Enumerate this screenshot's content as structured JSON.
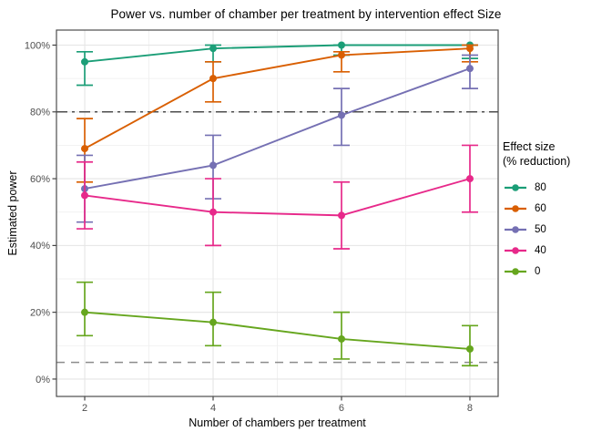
{
  "chart_data": {
    "type": "line",
    "title": "Power vs. number of chamber per treatment by intervention effect Size",
    "xlabel": "Number of chambers per treatment",
    "ylabel": "Estimated power",
    "x": [
      2,
      4,
      6,
      8
    ],
    "xlim": [
      1.56,
      8.44
    ],
    "ylim": [
      -5.2,
      104.5
    ],
    "xticks": {
      "values": [
        2,
        4,
        6,
        8
      ],
      "labels": [
        "2",
        "4",
        "6",
        "8"
      ]
    },
    "yticks": {
      "values": [
        0,
        20,
        40,
        60,
        80,
        100
      ],
      "labels": [
        "0%",
        "20%",
        "40%",
        "60%",
        "80%",
        "100%"
      ]
    },
    "grid": {
      "major": true,
      "minor": true,
      "x_minor": [
        3,
        5,
        7
      ],
      "y_minor": [
        10,
        30,
        50,
        70,
        90
      ]
    },
    "series": [
      {
        "name": "80",
        "color": "#1B9E77",
        "values": [
          95,
          99,
          100,
          100
        ],
        "lower": [
          88,
          95,
          97,
          96
        ],
        "upper": [
          98,
          100,
          100,
          100
        ]
      },
      {
        "name": "60",
        "color": "#D95F02",
        "values": [
          69,
          90,
          97,
          99
        ],
        "lower": [
          59,
          83,
          92,
          95
        ],
        "upper": [
          78,
          95,
          98,
          100
        ]
      },
      {
        "name": "50",
        "color": "#7570B3",
        "values": [
          57,
          64,
          79,
          93
        ],
        "lower": [
          47,
          54,
          70,
          87
        ],
        "upper": [
          67,
          73,
          87,
          97
        ]
      },
      {
        "name": "40",
        "color": "#E7298A",
        "values": [
          55,
          50,
          49,
          60
        ],
        "lower": [
          45,
          40,
          39,
          50
        ],
        "upper": [
          65,
          60,
          59,
          70
        ]
      },
      {
        "name": "0",
        "color": "#66A61E",
        "values": [
          20,
          17,
          12,
          9
        ],
        "lower": [
          13,
          10,
          6,
          4
        ],
        "upper": [
          29,
          26,
          20,
          16
        ]
      }
    ],
    "reference_lines": [
      {
        "y": 80,
        "style": "dashdot",
        "color": "#4d4d4d"
      },
      {
        "y": 5,
        "style": "dashed",
        "color": "#8c8c8c"
      }
    ],
    "legend": {
      "position": "right",
      "title_line1": "Effect size",
      "title_line2": "(% reduction)",
      "entries": [
        "80",
        "60",
        "50",
        "40",
        "0"
      ]
    },
    "panel": {
      "background": "#ffffff",
      "border_color": "#4d4d4d",
      "grid_major_color": "#e5e5e5",
      "grid_minor_color": "#f0f0f0",
      "tick_label_color": "#4d4d4d"
    }
  }
}
